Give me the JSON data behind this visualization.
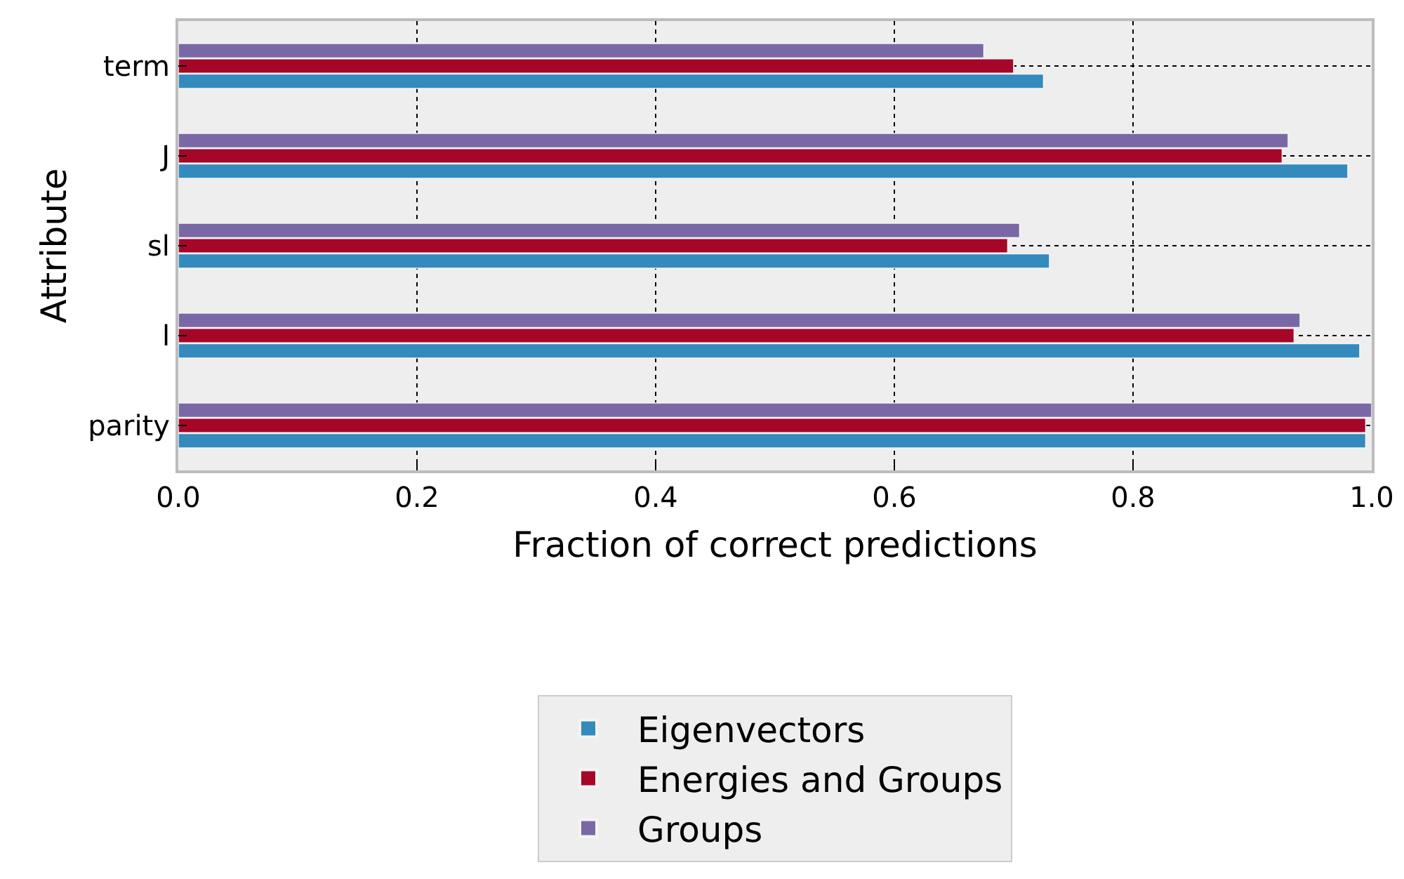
{
  "chart_data": {
    "type": "bar",
    "orientation": "horizontal",
    "xlabel": "Fraction of correct predictions",
    "ylabel": "Attribute",
    "categories": [
      "term",
      "J",
      "sl",
      "l",
      "parity"
    ],
    "series": [
      {
        "name": "Eigenvectors",
        "color": "#348abd",
        "values": [
          0.725,
          0.98,
          0.73,
          0.99,
          0.995
        ]
      },
      {
        "name": "Energies and Groups",
        "color": "#a60628",
        "values": [
          0.7,
          0.925,
          0.695,
          0.935,
          0.995
        ]
      },
      {
        "name": "Groups",
        "color": "#7a68a6",
        "values": [
          0.675,
          0.93,
          0.705,
          0.94,
          1.0
        ]
      }
    ],
    "xlim": [
      0,
      1
    ],
    "xticks": [
      {
        "value": 0,
        "label": "0.0"
      },
      {
        "value": 0.2,
        "label": "0.2"
      },
      {
        "value": 0.4,
        "label": "0.4"
      },
      {
        "value": 0.6,
        "label": "0.6"
      },
      {
        "value": 0.8,
        "label": "0.8"
      },
      {
        "value": 1.0,
        "label": "1.0"
      }
    ],
    "grid": true,
    "legend": "bottom"
  }
}
